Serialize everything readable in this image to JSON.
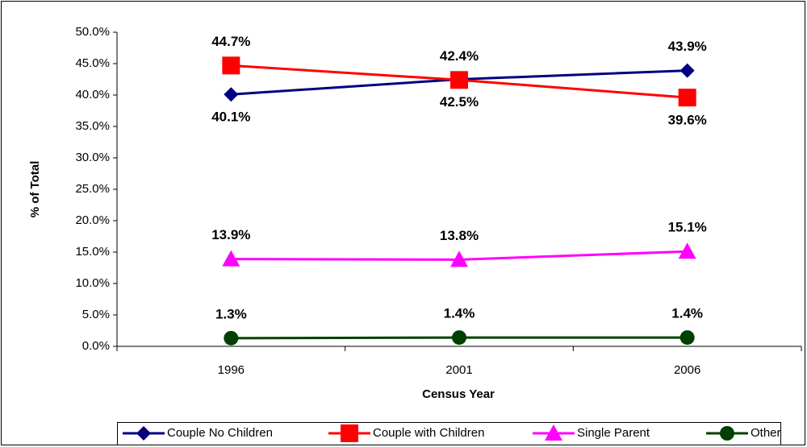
{
  "chart_data": {
    "type": "line",
    "x_label": "Census Year",
    "y_label": "% of Total",
    "categories": [
      "1996",
      "2001",
      "2006"
    ],
    "series": [
      {
        "name": "Couple No Children",
        "color": "#000080",
        "marker": "diamond",
        "values": [
          40.1,
          42.5,
          43.9
        ],
        "value_labels": [
          "40.1%",
          "42.5%",
          "43.9%"
        ]
      },
      {
        "name": "Couple with Children",
        "color": "#ff0000",
        "marker": "square",
        "values": [
          44.7,
          42.4,
          39.6
        ],
        "value_labels": [
          "44.7%",
          "42.4%",
          "39.6%"
        ]
      },
      {
        "name": "Single Parent",
        "color": "#ff00ff",
        "marker": "triangle",
        "values": [
          13.9,
          13.8,
          15.1
        ],
        "value_labels": [
          "13.9%",
          "13.8%",
          "15.1%"
        ]
      },
      {
        "name": "Other",
        "color": "#004000",
        "marker": "circle",
        "values": [
          1.3,
          1.4,
          1.4
        ],
        "value_labels": [
          "1.3%",
          "1.4%",
          "1.4%"
        ]
      }
    ],
    "ylim": [
      0,
      50
    ],
    "yticks": [
      {
        "value": 0,
        "label": "0.0%"
      },
      {
        "value": 5,
        "label": "5.0%"
      },
      {
        "value": 10,
        "label": "10.0%"
      },
      {
        "value": 15,
        "label": "15.0%"
      },
      {
        "value": 20,
        "label": "20.0%"
      },
      {
        "value": 25,
        "label": "25.0%"
      },
      {
        "value": 30,
        "label": "30.0%"
      },
      {
        "value": 35,
        "label": "35.0%"
      },
      {
        "value": 40,
        "label": "40.0%"
      },
      {
        "value": 45,
        "label": "45.0%"
      },
      {
        "value": 50,
        "label": "50.0%"
      }
    ],
    "grid": false,
    "legend": "bottom"
  }
}
